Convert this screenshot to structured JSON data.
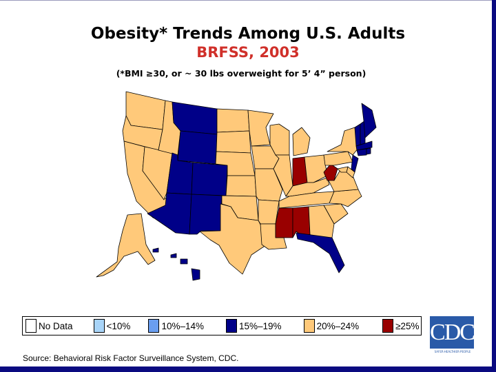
{
  "title": "Obesity* Trends Among U.S. Adults",
  "subtitle": "BRFSS, 2003",
  "note": "(*BMI ≥30, or ~ 30 lbs overweight for 5’ 4” person)",
  "colors": {
    "no_data": "#ffffff",
    "lt10": "#a8d4f8",
    "10_14": "#6a9ef0",
    "15_19": "#000088",
    "20_24": "#ffc97a",
    "ge25": "#990000",
    "frame": "#0a0a80"
  },
  "legend": [
    {
      "label": "No Data",
      "key": "no_data"
    },
    {
      "label": "<10%",
      "key": "lt10"
    },
    {
      "label": "10%–14%",
      "key": "10_14"
    },
    {
      "label": "15%–19%",
      "key": "15_19"
    },
    {
      "label": "20%–24%",
      "key": "20_24"
    },
    {
      "label": "≥25%",
      "key": "ge25"
    }
  ],
  "states": {
    "15_19": [
      "MT",
      "WY",
      "UT",
      "CO",
      "AZ",
      "NM",
      "HI",
      "FL",
      "NJ",
      "VT",
      "NH",
      "ME",
      "MA",
      "CT",
      "RI"
    ],
    "ge25": [
      "IN",
      "WV",
      "MS",
      "AL"
    ],
    "20_24": [
      "WA",
      "OR",
      "CA",
      "NV",
      "ID",
      "ND",
      "SD",
      "NE",
      "KS",
      "OK",
      "TX",
      "MN",
      "IA",
      "MO",
      "AR",
      "LA",
      "WI",
      "IL",
      "MI",
      "OH",
      "KY",
      "TN",
      "GA",
      "SC",
      "NC",
      "VA",
      "PA",
      "NY",
      "DE",
      "MD",
      "AK"
    ]
  },
  "logo": {
    "text": "CDC",
    "tagline": "SAFER·HEALTHIER·PEOPLE"
  },
  "source": "Source: Behavioral Risk Factor Surveillance System, CDC."
}
